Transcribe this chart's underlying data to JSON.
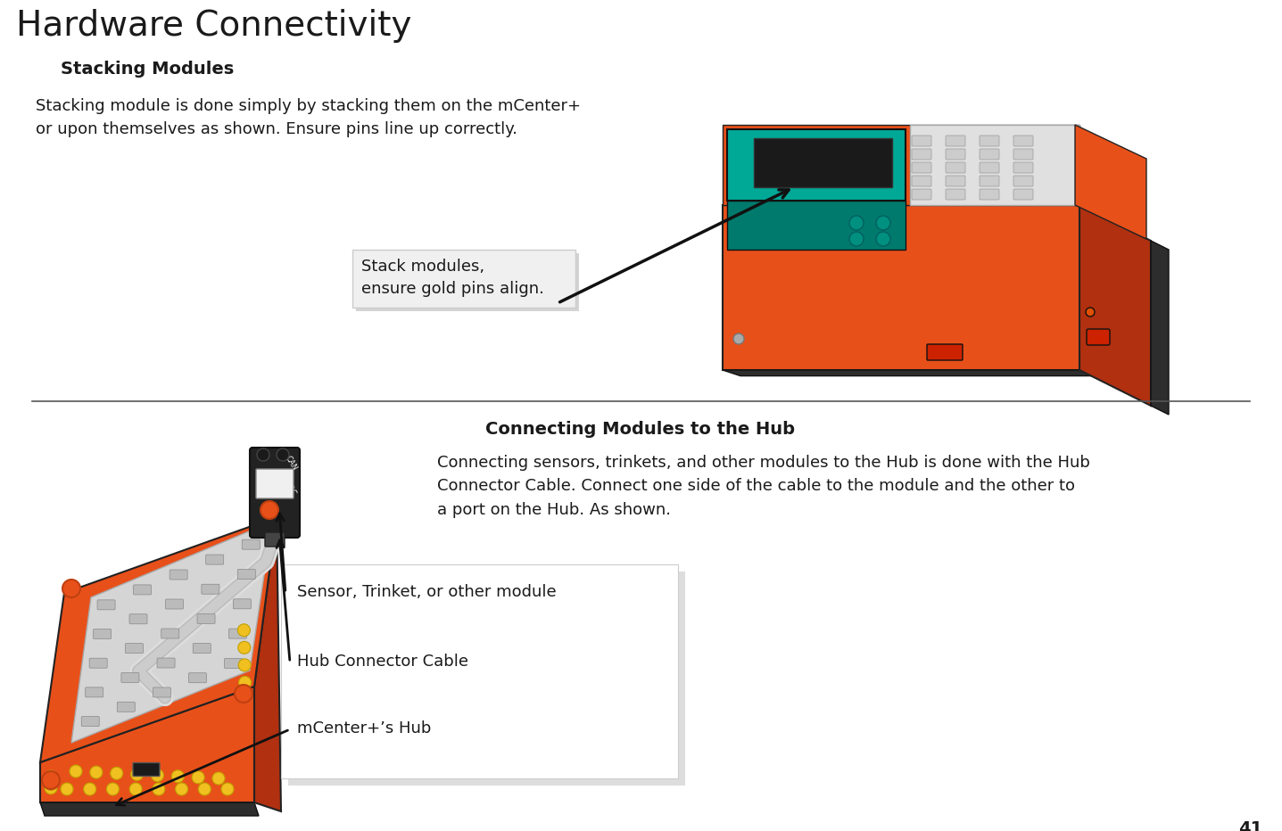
{
  "bg_color": "#ffffff",
  "text_color": "#1a1a1a",
  "page_number": "41",
  "title": "Hardware Connectivity",
  "section1_heading": "Stacking Modules",
  "section1_body": "Stacking module is done simply by stacking them on the mCenter+\nor upon themselves as shown. Ensure pins line up correctly.",
  "callout1_text": "Stack modules,\nensure gold pins align.",
  "section2_heading": "Connecting Modules to the Hub",
  "section2_body": "Connecting sensors, trinkets, and other modules to the Hub is done with the Hub\nConnector Cable. Connect one side of the cable to the module and the other to\na port on the Hub. As shown.",
  "callout2_line1": "Sensor, Trinket, or other module",
  "callout2_line2": "Hub Connector Cable",
  "callout2_line3": "mCenter+’s Hub",
  "title_fontsize": 28,
  "heading_fontsize": 14,
  "body_fontsize": 13,
  "callout_fontsize": 13,
  "pagenumber_fontsize": 14,
  "arrow_color": "#111111",
  "orange": "#e8501a",
  "dark_orange": "#b03010",
  "dark_gray": "#2d2d2d",
  "teal": "#00a896",
  "pin_gray": "#cccccc",
  "yellow_gold": "#f0c020"
}
